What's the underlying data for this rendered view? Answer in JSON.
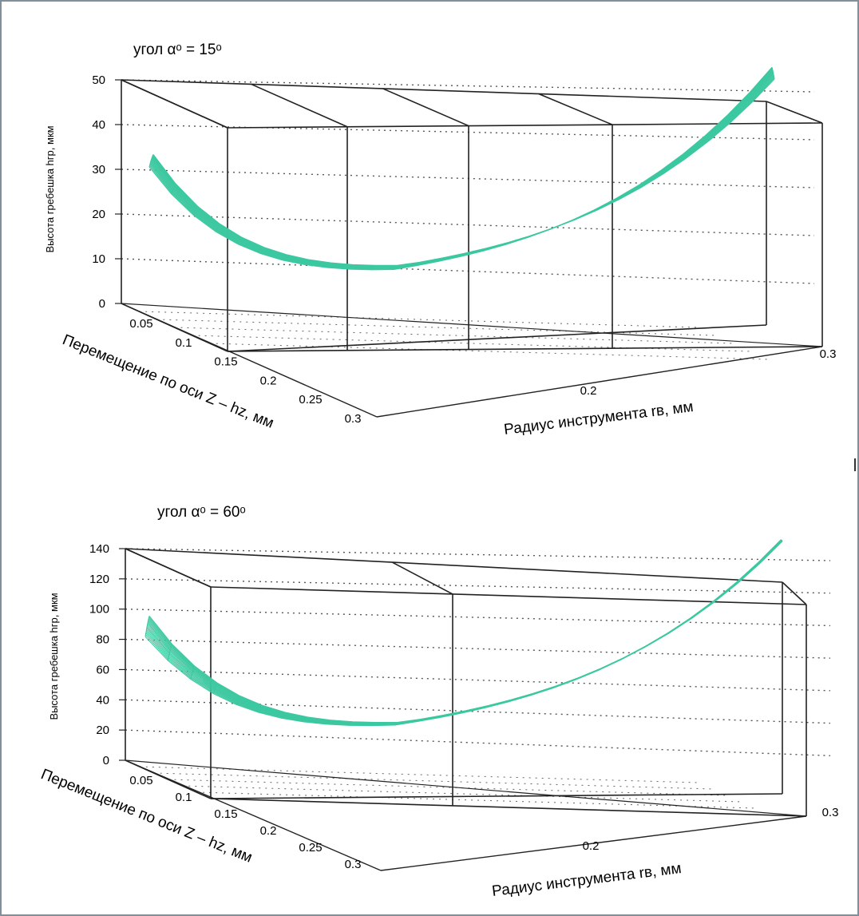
{
  "chart_data": [
    {
      "type": "surface",
      "title": "угол αᵒ = 15ᵒ",
      "xlabel": "Радиус инструмента rв, мм",
      "ylabel": "Перемещение по оси Z – hz, мм",
      "zlabel": "Высота гребешка hгр, мкм",
      "x_ticks": [
        "0.2",
        "0.3"
      ],
      "y_ticks": [
        "0.05",
        "0.1",
        "0.15",
        "0.2",
        "0.25",
        "0.3"
      ],
      "z_ticks": [
        "0",
        "10",
        "20",
        "30",
        "40",
        "50"
      ],
      "xlim": [
        0.1,
        0.3
      ],
      "ylim": [
        0.0,
        0.3
      ],
      "zlim": [
        0,
        50
      ],
      "grid_count": [
        28,
        14
      ],
      "z_front_max": 38,
      "z_back_max": 42,
      "surface_color": "#3cc8a0",
      "grid": true
    },
    {
      "type": "surface",
      "title": "угол αᵒ = 60ᵒ",
      "xlabel": "Радиус инструмента rв, мм",
      "ylabel": "Перемещение по оси Z – hz, мм",
      "zlabel": "Высота гребешка hгр, мкм",
      "x_ticks": [
        "0.2",
        "0.3"
      ],
      "y_ticks": [
        "0.05",
        "0.1",
        "0.15",
        "0.2",
        "0.25",
        "0.3"
      ],
      "z_ticks": [
        "0",
        "20",
        "40",
        "60",
        "80",
        "100",
        "120",
        "140"
      ],
      "xlim": [
        0.1,
        0.3
      ],
      "ylim": [
        0.0,
        0.3
      ],
      "zlim": [
        0,
        140
      ],
      "grid_count": [
        28,
        14
      ],
      "z_front_max": 100,
      "z_back_max": 120,
      "surface_color": "#3cc8a0",
      "grid": true
    }
  ]
}
